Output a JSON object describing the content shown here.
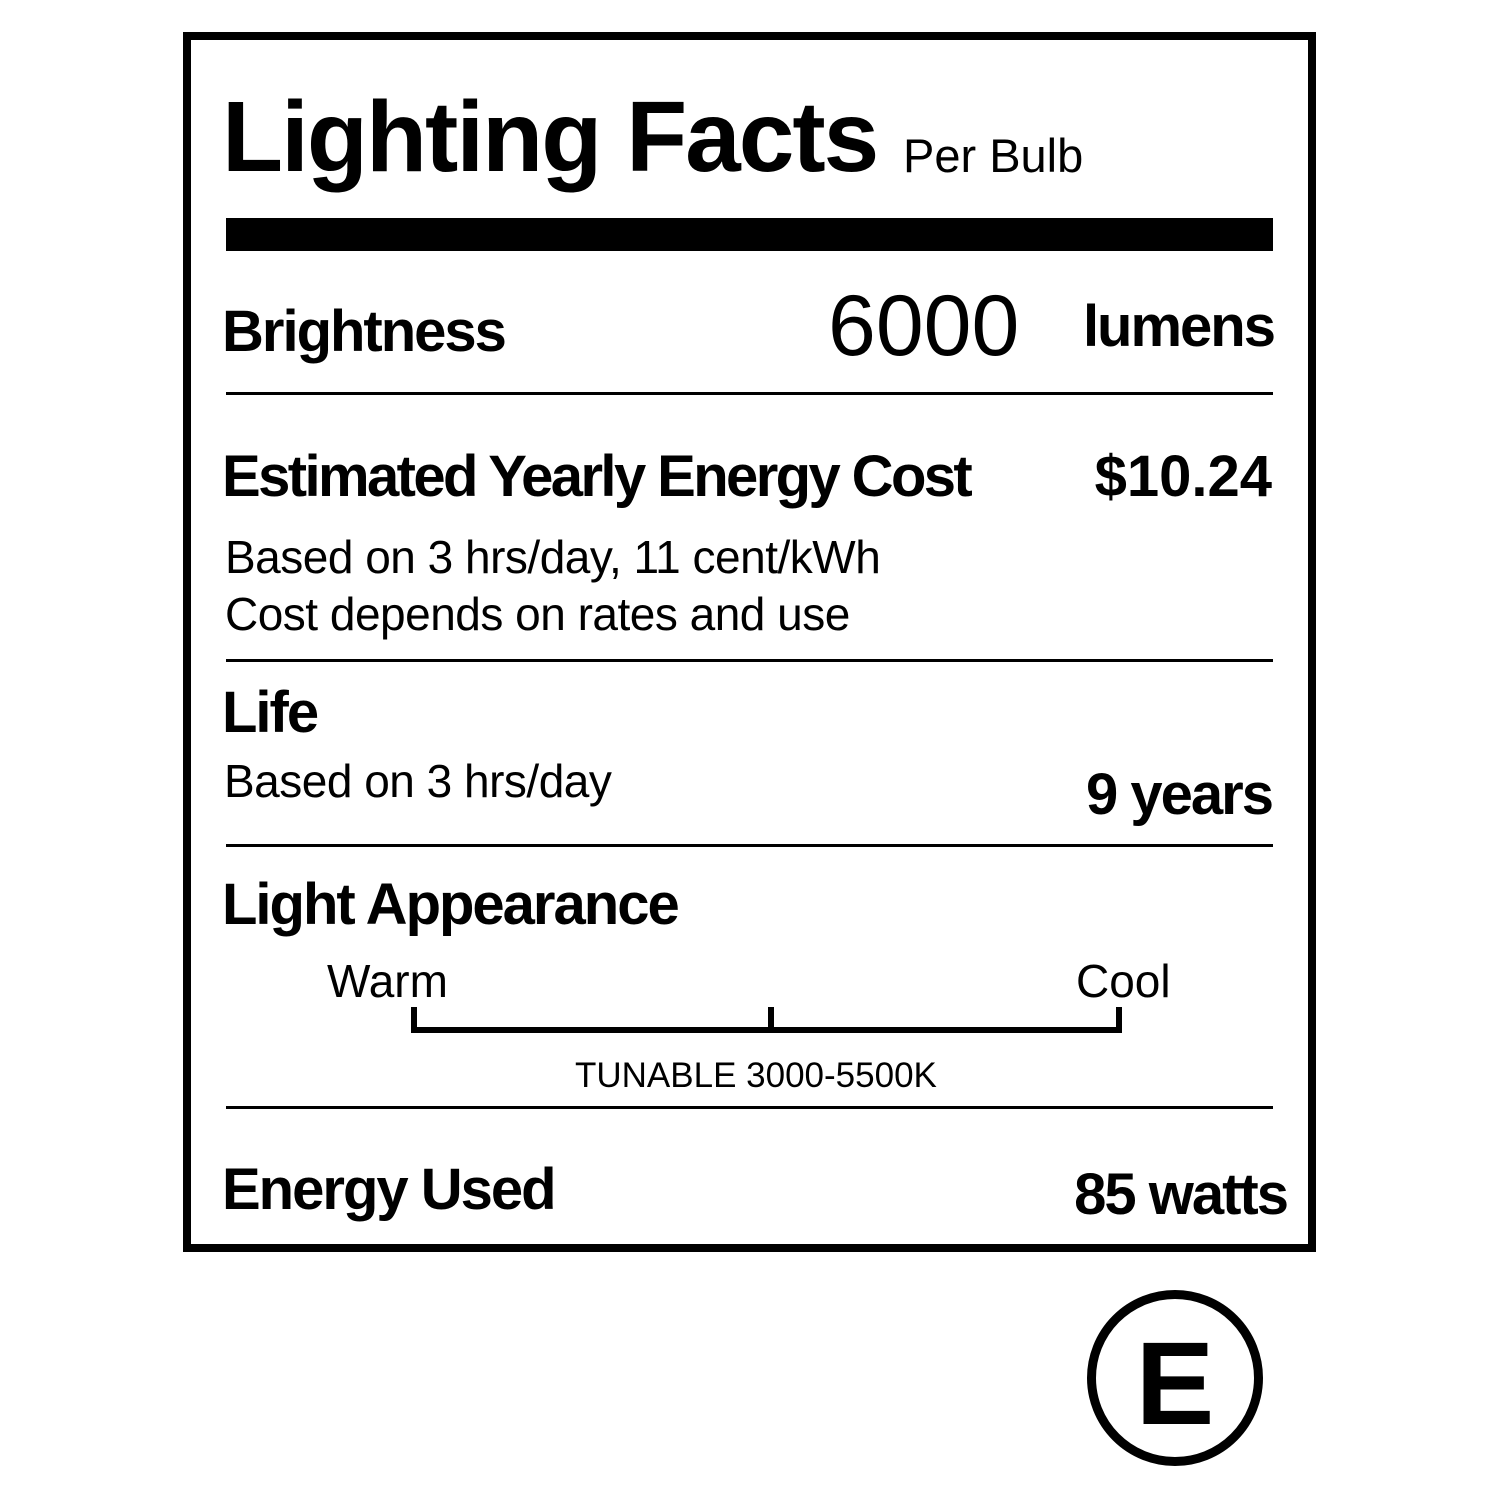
{
  "label": {
    "title": "Lighting Facts",
    "subtitle": "Per Bulb",
    "brightness": {
      "label": "Brightness",
      "value": "6000",
      "unit": "lumens"
    },
    "cost": {
      "label": "Estimated Yearly Energy Cost",
      "value": "$10.24",
      "note_1": "Based on 3 hrs/day, 11 cent/kWh",
      "note_2": "Cost depends on rates and use"
    },
    "life": {
      "label": "Life",
      "note": "Based on 3 hrs/day",
      "value": "9 years"
    },
    "appearance": {
      "label": "Light Appearance",
      "warm_label": "Warm",
      "cool_label": "Cool",
      "range_text": "TUNABLE 3000-5500K"
    },
    "energy": {
      "label": "Energy Used",
      "value": "85 watts"
    },
    "badge": "E"
  }
}
